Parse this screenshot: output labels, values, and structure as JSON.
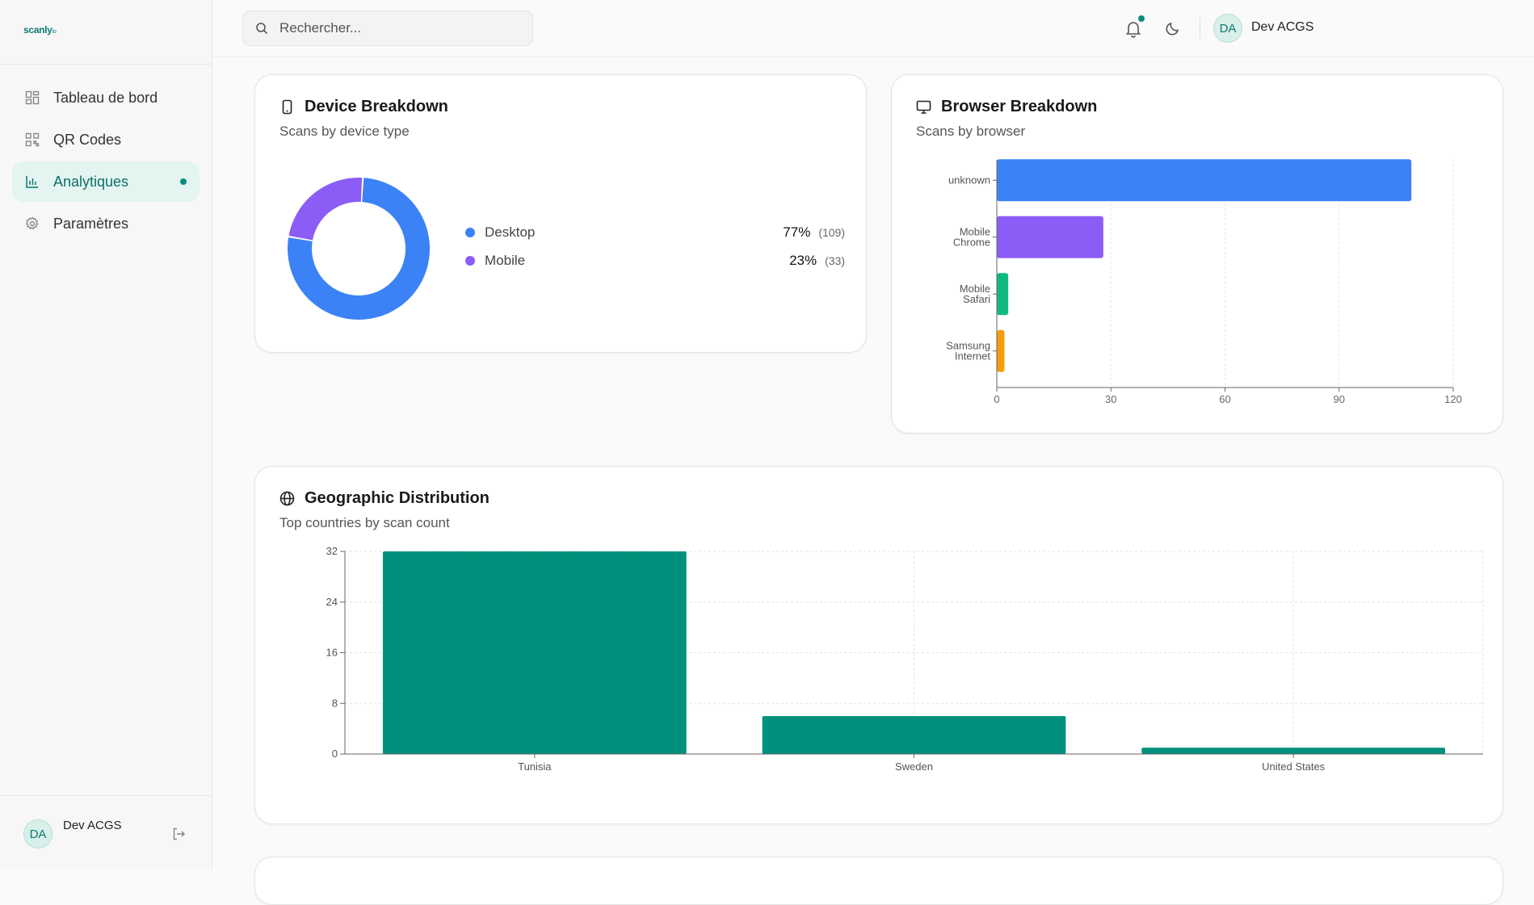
{
  "brand": {
    "name": "scanly",
    "suffix": "io"
  },
  "sidebar": {
    "items": [
      {
        "label": "Tableau de bord",
        "icon": "grid-icon"
      },
      {
        "label": "QR Codes",
        "icon": "qr-icon"
      },
      {
        "label": "Analytiques",
        "icon": "bar-chart-icon",
        "active": true
      },
      {
        "label": "Paramètres",
        "icon": "gear-icon"
      }
    ],
    "user": {
      "initials": "DA",
      "name": "Dev ACGS"
    }
  },
  "header": {
    "search_placeholder": "Rechercher...",
    "user": {
      "initials": "DA",
      "name": "Dev ACGS"
    }
  },
  "device_card": {
    "title": "Device Breakdown",
    "subtitle": "Scans by device type",
    "items": [
      {
        "name": "Desktop",
        "percent": "77%",
        "count": "(109)",
        "color": "#3b82f6"
      },
      {
        "name": "Mobile",
        "percent": "23%",
        "count": "(33)",
        "color": "#8b5cf6"
      }
    ]
  },
  "browser_card": {
    "title": "Browser Breakdown",
    "subtitle": "Scans by browser"
  },
  "geo_card": {
    "title": "Geographic Distribution",
    "subtitle": "Top countries by scan count"
  },
  "chart_data": [
    {
      "type": "pie",
      "categories": [
        "Desktop",
        "Mobile"
      ],
      "values": [
        109,
        33
      ],
      "colors": [
        "#3b82f6",
        "#8b5cf6"
      ]
    },
    {
      "type": "bar",
      "orientation": "horizontal",
      "categories": [
        [
          "unknown"
        ],
        [
          "Mobile",
          "Chrome"
        ],
        [
          "Mobile",
          "Safari"
        ],
        [
          "Samsung",
          "Internet"
        ]
      ],
      "values": [
        109,
        28,
        3,
        2
      ],
      "colors": [
        "#3b82f6",
        "#8b5cf6",
        "#10b981",
        "#f59e0b"
      ],
      "xlim": [
        0,
        120
      ],
      "xticks": [
        0,
        30,
        60,
        90,
        120
      ],
      "grid": true
    },
    {
      "type": "bar",
      "categories": [
        "Tunisia",
        "Sweden",
        "United States"
      ],
      "values": [
        32,
        6,
        1
      ],
      "color": "#00917c",
      "ylim": [
        0,
        32
      ],
      "yticks": [
        0,
        8,
        16,
        24,
        32
      ],
      "grid": true
    }
  ]
}
